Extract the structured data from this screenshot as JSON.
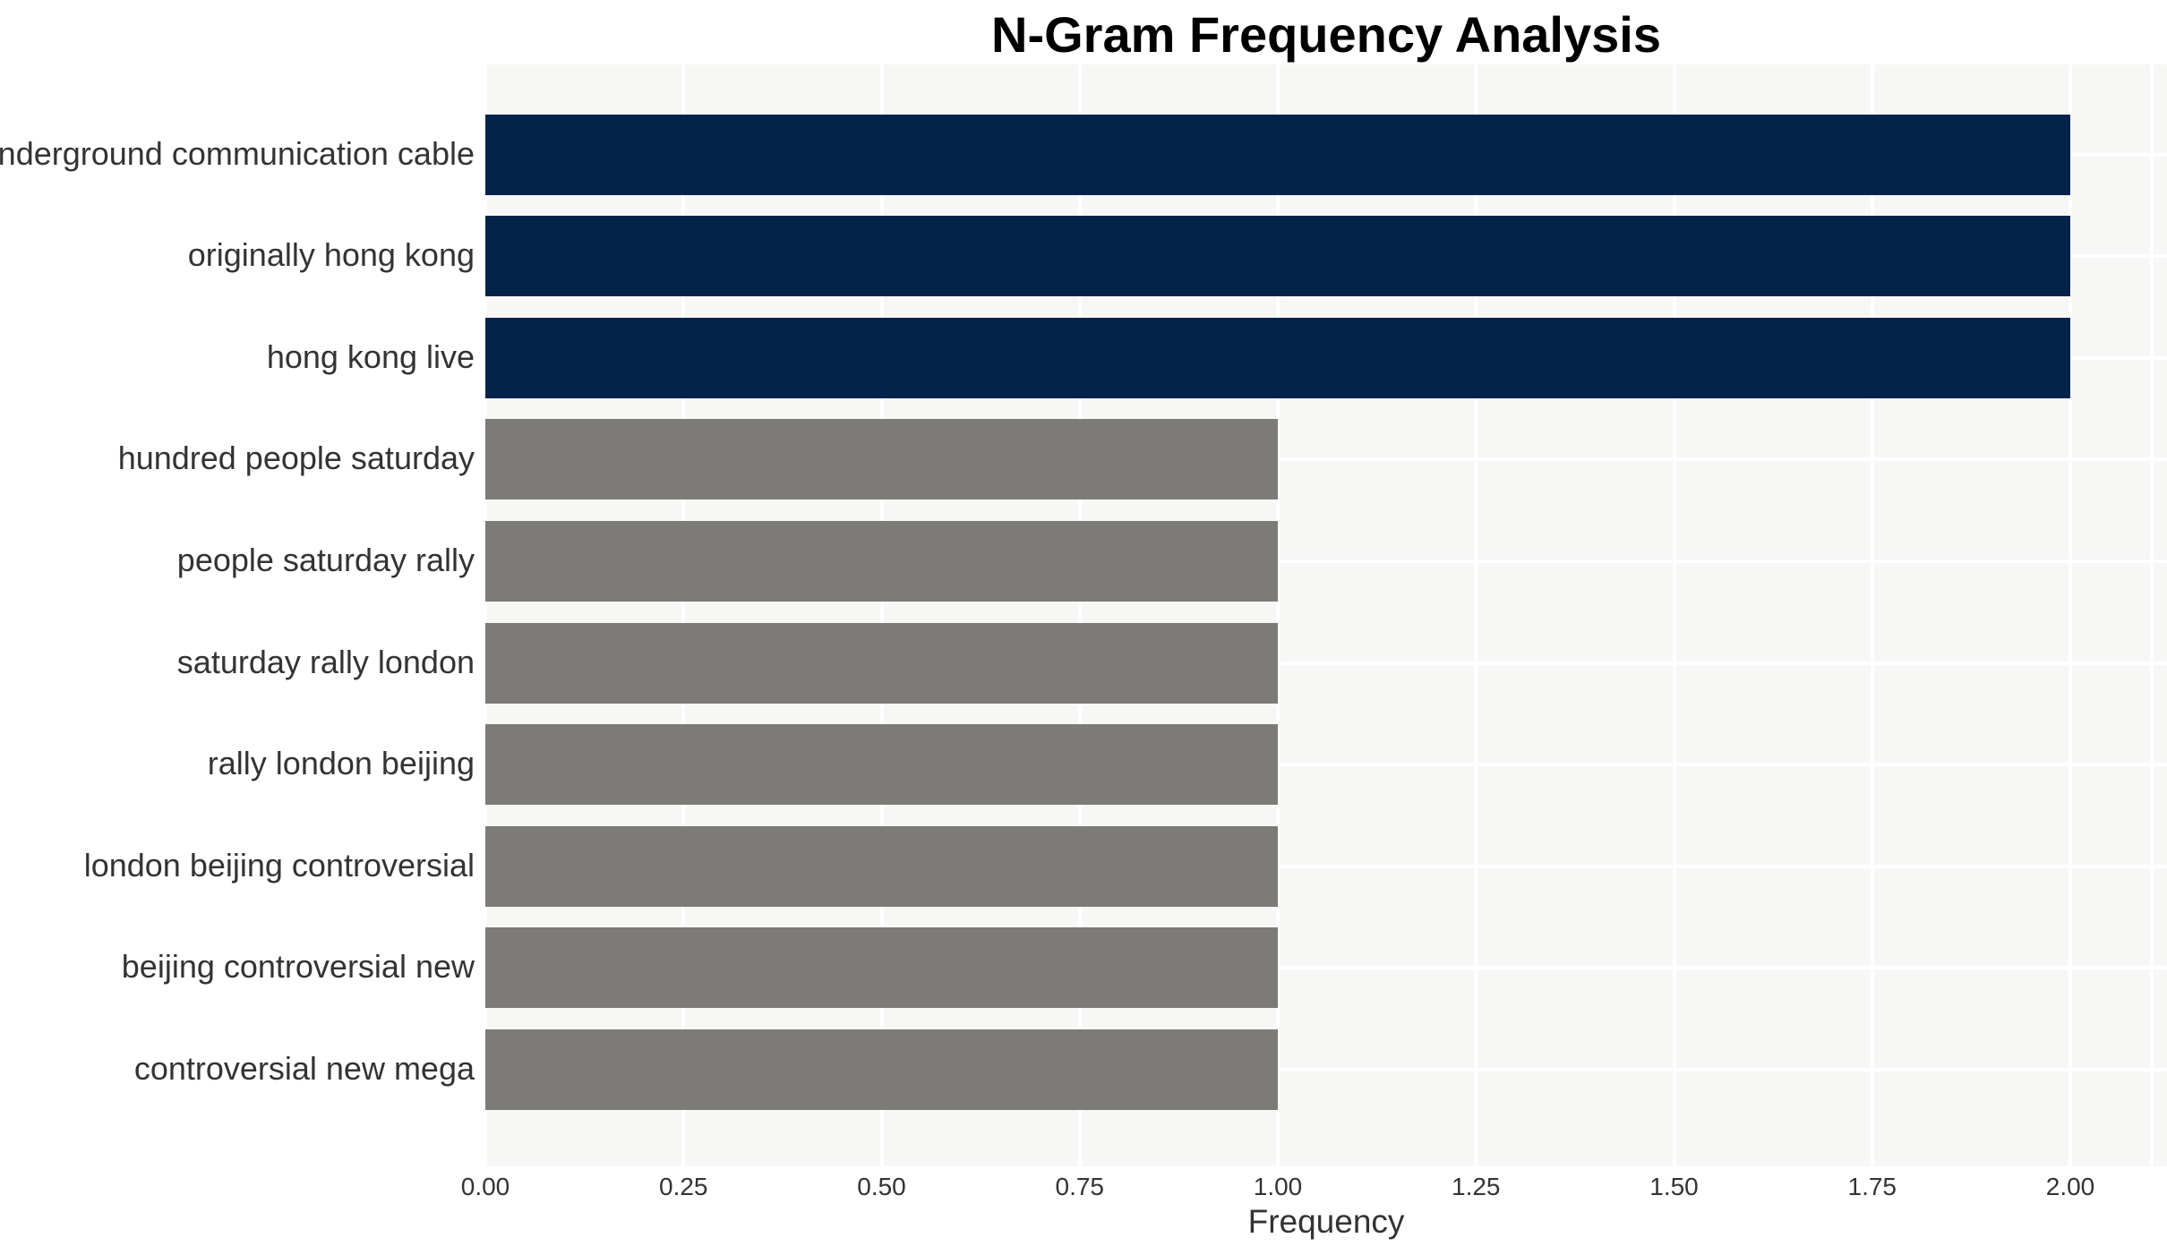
{
  "chart_data": {
    "type": "bar",
    "orientation": "horizontal",
    "title": "N-Gram Frequency Analysis",
    "xlabel": "Frequency",
    "ylabel": "",
    "categories": [
      "underground communication cable",
      "originally hong kong",
      "hong kong live",
      "hundred people saturday",
      "people saturday rally",
      "saturday rally london",
      "rally london beijing",
      "london beijing controversial",
      "beijing controversial new",
      "controversial new mega"
    ],
    "values": [
      2,
      2,
      2,
      1,
      1,
      1,
      1,
      1,
      1,
      1
    ],
    "bar_colors": [
      "#04234b",
      "#04234b",
      "#04234b",
      "#7d7b78",
      "#7d7b78",
      "#7d7b78",
      "#7d7b78",
      "#7d7b78",
      "#7d7b78",
      "#7d7b78"
    ],
    "xlim": [
      0,
      2.12
    ],
    "xticks": [
      0,
      0.25,
      0.5,
      0.75,
      1.0,
      1.25,
      1.5,
      1.75,
      2.0
    ],
    "xtick_labels": [
      "0.00",
      "0.25",
      "0.50",
      "0.75",
      "1.00",
      "1.25",
      "1.50",
      "1.75",
      "2.00"
    ],
    "extra_vgrid_values": [
      2.103
    ],
    "grid": "white major gridlines; vertical at each x tick, horizontal at each category center",
    "legend": "none",
    "colors": {
      "high_frequency_bar": "#04234b",
      "low_frequency_bar": "#7d7b78",
      "panel_background": "#f7f7f6",
      "grid_line": "#ffffff",
      "page_background": "#ffffff",
      "tick_text": "#333333",
      "title_text": "#000000"
    }
  }
}
